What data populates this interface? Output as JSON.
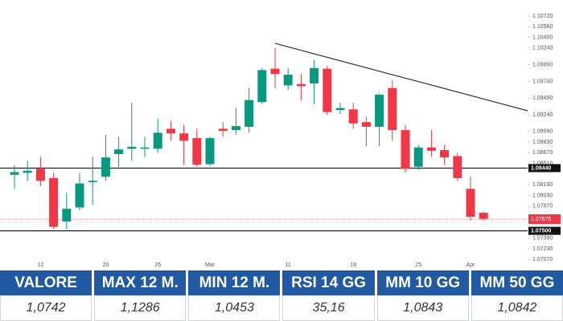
{
  "chart_data": {
    "type": "candlestick",
    "categories": [
      null,
      null,
      "12",
      null,
      null,
      null,
      null,
      "20",
      null,
      null,
      null,
      "26",
      null,
      null,
      null,
      "Mar",
      null,
      null,
      null,
      null,
      null,
      "11",
      null,
      null,
      null,
      null,
      "18",
      null,
      null,
      null,
      null,
      "25",
      null,
      null,
      null,
      "Apr",
      null
    ],
    "open": [
      1.0834,
      1.0837,
      1.0843,
      1.0829,
      1.0764,
      1.0785,
      1.0823,
      1.0831,
      1.0865,
      1.0873,
      1.0873,
      1.0873,
      1.0903,
      1.0896,
      1.0889,
      1.085,
      1.0903,
      1.0901,
      1.0906,
      1.0943,
      1.0993,
      1.0968,
      1.097,
      1.0971,
      1.0993,
      1.0931,
      1.0932,
      1.0913,
      1.0906,
      1.0964,
      1.0901,
      1.0846,
      1.0875,
      1.0871,
      1.0862,
      1.0813,
      1.0777
    ],
    "high": [
      1.0849,
      1.0855,
      1.0861,
      1.0837,
      1.0807,
      1.0837,
      1.0861,
      1.0894,
      1.0891,
      1.0942,
      1.0891,
      1.0918,
      1.0915,
      1.0909,
      1.0903,
      1.0891,
      1.0913,
      1.0934,
      1.0964,
      1.0994,
      1.1024,
      1.0994,
      1.0985,
      1.1006,
      1.0997,
      1.0942,
      1.0942,
      1.0921,
      1.0956,
      1.0976,
      1.0909,
      1.0879,
      1.0901,
      1.0879,
      1.0867,
      1.0831,
      1.0779
    ],
    "low": [
      1.0813,
      1.0825,
      1.0817,
      1.0753,
      1.0753,
      1.0781,
      1.0789,
      1.0825,
      1.0846,
      1.0855,
      1.0861,
      1.0867,
      1.0885,
      1.0849,
      1.0846,
      1.0847,
      1.0891,
      1.0894,
      1.0897,
      1.094,
      1.0964,
      1.0961,
      1.0946,
      1.094,
      1.0924,
      1.0925,
      1.0903,
      1.0877,
      1.0877,
      1.0885,
      1.0837,
      1.0841,
      1.0861,
      1.0849,
      1.0824,
      1.0765,
      1.0765
    ],
    "close": [
      1.0838,
      1.084,
      1.0825,
      1.0756,
      1.0783,
      1.0821,
      1.0825,
      1.086,
      1.0872,
      1.0876,
      1.0875,
      1.0897,
      1.0896,
      1.0885,
      1.0849,
      1.0889,
      1.09,
      1.0907,
      1.0946,
      1.0991,
      1.0985,
      1.0984,
      1.0967,
      1.0994,
      1.0928,
      1.0934,
      1.0911,
      1.0906,
      1.0954,
      1.0901,
      1.0843,
      1.0875,
      1.087,
      1.086,
      1.0829,
      1.0771,
      1.0768
    ],
    "up_color": "#089981",
    "down_color": "#f23645",
    "ylim": [
      1.0699,
      1.1084
    ],
    "yticks": [
      {
        "value": 1.1072,
        "label": "1.10720"
      },
      {
        "value": 1.1056,
        "label": "1.10560"
      },
      {
        "value": 1.104,
        "label": "1.10400"
      },
      {
        "value": 1.1024,
        "label": "1.10240"
      },
      {
        "value": 1.0999,
        "label": "1.09990"
      },
      {
        "value": 1.0974,
        "label": "1.09740"
      },
      {
        "value": 1.0949,
        "label": "1.09490"
      },
      {
        "value": 1.0924,
        "label": "1.09240"
      },
      {
        "value": 1.0899,
        "label": "1.08990"
      },
      {
        "value": 1.0883,
        "label": "1.08830"
      },
      {
        "value": 1.0867,
        "label": "1.08670"
      },
      {
        "value": 1.0851,
        "label": "1.08510"
      },
      {
        "value": 1.0819,
        "label": "1.08190"
      },
      {
        "value": 1.0803,
        "label": "1.08030"
      },
      {
        "value": 1.0787,
        "label": "1.07870"
      },
      {
        "value": 1.0739,
        "label": "1.07390"
      },
      {
        "value": 1.0723,
        "label": "1.07230"
      },
      {
        "value": 1.0707,
        "label": "1.07070"
      }
    ],
    "levels": [
      {
        "value": 1.0844,
        "label": "1.08440"
      },
      {
        "value": 1.075,
        "label": "1.07500"
      }
    ],
    "current_price": {
      "value": 1.07675,
      "label": "1.07675"
    },
    "trendline": {
      "start": 1.1031,
      "end": 1.093
    }
  },
  "table": {
    "headers": [
      "VALORE",
      "MAX 12 M.",
      "MIN 12 M.",
      "RSI 14 GG",
      "MM 10 GG",
      "MM 50 GG"
    ],
    "values": [
      "1,0742",
      "1,1286",
      "1,0453",
      "35,16",
      "1,0843",
      "1,0842"
    ]
  }
}
